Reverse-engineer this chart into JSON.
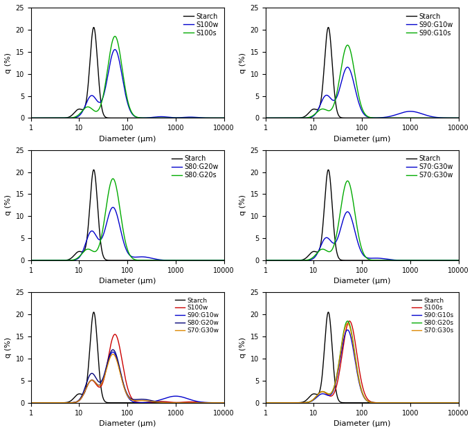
{
  "ylim": [
    0,
    25
  ],
  "xlim_min": 1,
  "xlim_max": 10000,
  "ylabel": "q (%)",
  "xlabel": "Diameter (μm)",
  "panels": [
    {
      "row": 0,
      "col": 0,
      "legend": [
        "Starch",
        "S100w",
        "S100s"
      ],
      "colors": [
        "black",
        "#0000cc",
        "#00aa00"
      ]
    },
    {
      "row": 0,
      "col": 1,
      "legend": [
        "Starch",
        "S90:G10w",
        "S90:G10s"
      ],
      "colors": [
        "black",
        "#0000cc",
        "#00aa00"
      ]
    },
    {
      "row": 1,
      "col": 0,
      "legend": [
        "Starch",
        "S80:G20w",
        "S80:G20s"
      ],
      "colors": [
        "black",
        "#0000cc",
        "#00aa00"
      ]
    },
    {
      "row": 1,
      "col": 1,
      "legend": [
        "Starch",
        "S70:G30w",
        "S70:G30w"
      ],
      "colors": [
        "black",
        "#0000cc",
        "#00aa00"
      ]
    },
    {
      "row": 2,
      "col": 0,
      "legend": [
        "Starch",
        "S100w",
        "S90:G10w",
        "S80:G20w",
        "S70:G30w"
      ],
      "colors": [
        "black",
        "#cc0000",
        "#0000cc",
        "#000077",
        "#dd8800"
      ]
    },
    {
      "row": 2,
      "col": 1,
      "legend": [
        "Starch",
        "S100s",
        "S90:G10s",
        "S80:G20s",
        "S70:G30s"
      ],
      "colors": [
        "black",
        "#cc0000",
        "#0000cc",
        "#00aa00",
        "#dd8800"
      ]
    }
  ]
}
